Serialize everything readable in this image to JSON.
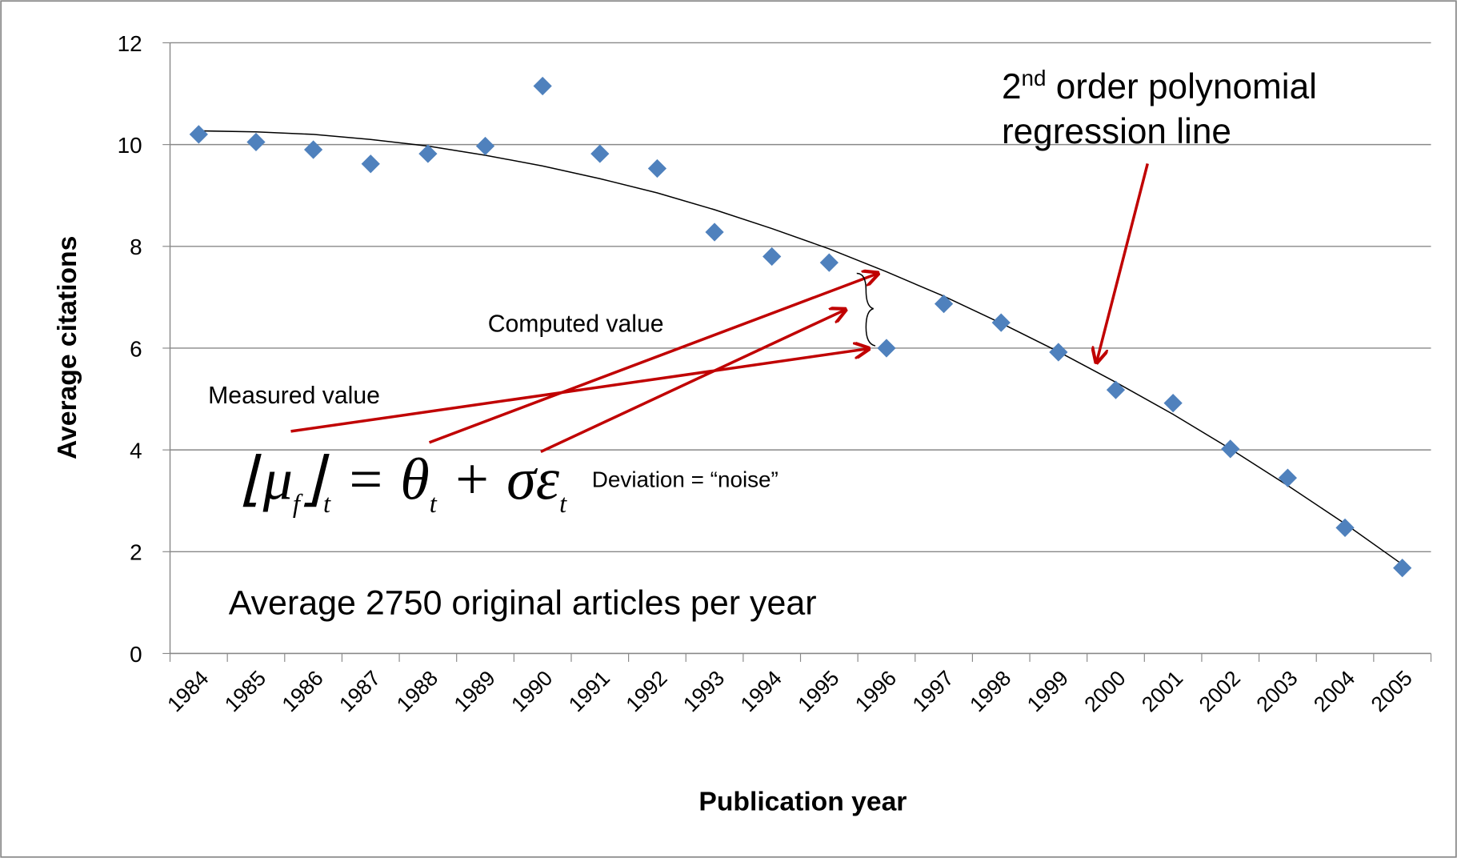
{
  "chart_data": {
    "type": "scatter",
    "xlabel": "Publication year",
    "ylabel": "Average citations",
    "categories": [
      "1984",
      "1985",
      "1986",
      "1987",
      "1988",
      "1989",
      "1990",
      "1991",
      "1992",
      "1993",
      "1994",
      "1995",
      "1996",
      "1997",
      "1998",
      "1999",
      "2000",
      "2001",
      "2002",
      "2003",
      "2004",
      "2005"
    ],
    "series": [
      {
        "color": "#4f81bd",
        "marker": "diamond",
        "values": [
          10.2,
          10.05,
          9.9,
          9.62,
          9.82,
          9.97,
          11.15,
          9.82,
          9.53,
          8.28,
          7.8,
          7.68,
          6.0,
          6.87,
          6.5,
          5.92,
          5.18,
          4.92,
          4.02,
          3.45,
          2.47,
          1.68
        ]
      },
      {
        "color": "#000000",
        "marker": "line",
        "values": [
          10.27,
          10.25,
          10.2,
          10.1,
          9.97,
          9.79,
          9.58,
          9.33,
          9.05,
          8.72,
          8.35,
          7.95,
          7.5,
          7.02,
          6.49,
          5.93,
          5.33,
          4.7,
          4.02,
          3.3,
          2.55,
          1.75
        ]
      }
    ],
    "ylim": [
      0,
      12
    ],
    "yticks": [
      0,
      2,
      4,
      6,
      8,
      10,
      12
    ],
    "grid": true,
    "annotations": {
      "regression": [
        "2",
        "nd",
        " order polynomial",
        "regression line"
      ],
      "computed": "Computed value",
      "measured": "Measured value",
      "deviation": "Deviation = “noise”",
      "average": "Average 2750 original articles per year",
      "equation": [
        "⌊μ",
        "f",
        "⌋",
        "t",
        " = θ",
        "t",
        " + σε",
        "t"
      ]
    }
  }
}
